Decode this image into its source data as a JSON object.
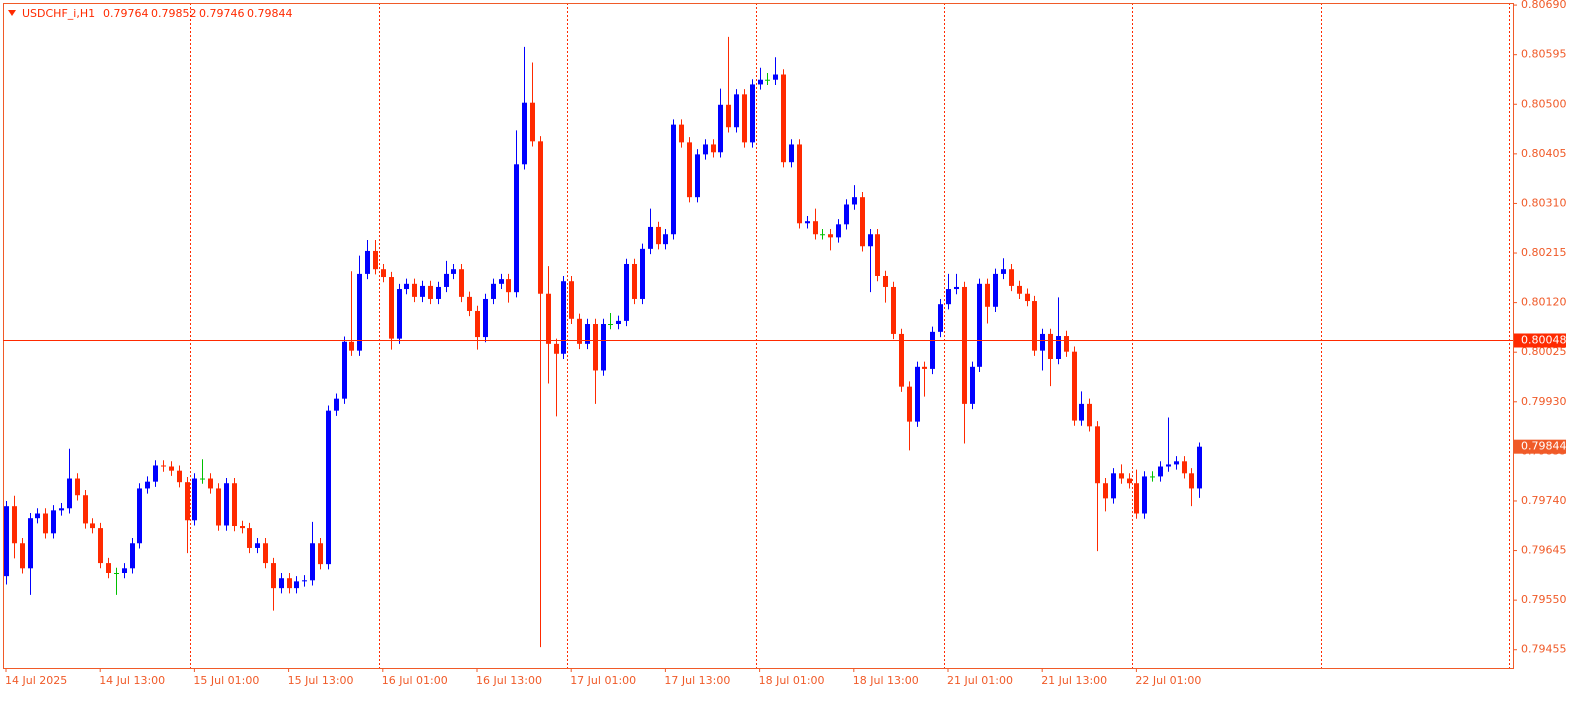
{
  "chart_data": {
    "type": "candlestick",
    "symbol": "USDCHF_i,H1",
    "up_color": "#0000ff",
    "down_color": "#ff2a00",
    "flat_color": "#00c000",
    "line_color": "#ff2a00",
    "axis_color": "#f05a28",
    "hline": 0.80048,
    "ylim": [
      0.7942,
      0.80694
    ],
    "yticks": [
      {
        "value": 0.8069,
        "label": "0.80690"
      },
      0.80595,
      {
        "value": 0.805,
        "label": "0.80500"
      },
      0.80405,
      {
        "value": 0.8031,
        "label": "0.80310"
      },
      0.80215,
      {
        "value": 0.8012,
        "label": "0.80120"
      },
      0.80025,
      {
        "value": 0.7993,
        "label": "0.79930"
      },
      0.79835,
      {
        "value": 0.7974,
        "label": "0.79740"
      },
      0.79645,
      {
        "value": 0.7955,
        "label": "0.79550"
      },
      0.79455
    ],
    "categories": [
      "14 Jul 2025",
      null,
      null,
      null,
      null,
      null,
      null,
      null,
      null,
      null,
      null,
      null,
      "14 Jul 13:00",
      null,
      null,
      null,
      null,
      null,
      null,
      null,
      null,
      null,
      null,
      null,
      "15 Jul 01:00",
      null,
      null,
      null,
      null,
      null,
      null,
      null,
      null,
      null,
      null,
      null,
      "15 Jul 13:00",
      null,
      null,
      null,
      null,
      null,
      null,
      null,
      null,
      null,
      null,
      null,
      "16 Jul 01:00",
      null,
      null,
      null,
      null,
      null,
      null,
      null,
      null,
      null,
      null,
      null,
      "16 Jul 13:00",
      null,
      null,
      null,
      null,
      null,
      null,
      null,
      null,
      null,
      null,
      null,
      "17 Jul 01:00",
      null,
      null,
      null,
      null,
      null,
      null,
      null,
      null,
      null,
      null,
      null,
      "17 Jul 13:00",
      null,
      null,
      null,
      null,
      null,
      null,
      null,
      null,
      null,
      null,
      null,
      "18 Jul 01:00",
      null,
      null,
      null,
      null,
      null,
      null,
      null,
      null,
      null,
      null,
      null,
      "18 Jul 13:00",
      null,
      null,
      null,
      null,
      null,
      null,
      null,
      null,
      null,
      null,
      null,
      "21 Jul 01:00",
      null,
      null,
      null,
      null,
      null,
      null,
      null,
      null,
      null,
      null,
      null,
      "21 Jul 13:00",
      null,
      null,
      null,
      null,
      null,
      null,
      null,
      null,
      null,
      null,
      null,
      "22 Jul 01:00",
      null,
      null,
      null,
      null,
      null,
      null,
      null,
      null
    ],
    "open": [
      0.79596,
      0.7973,
      0.79659,
      0.79611,
      0.79707,
      0.79716,
      0.79678,
      0.79722,
      0.79726,
      0.79783,
      0.79751,
      0.79697,
      0.79688,
      0.79621,
      0.79602,
      0.79602,
      0.79611,
      0.79659,
      0.79764,
      0.79777,
      0.79808,
      0.79806,
      0.79798,
      0.79776,
      0.79703,
      0.79783,
      0.79783,
      0.79764,
      0.79693,
      0.79774,
      0.79692,
      0.79688,
      0.7965,
      0.79659,
      0.79621,
      0.79573,
      0.79592,
      0.79573,
      0.79586,
      0.79588,
      0.79659,
      0.79619,
      0.79913,
      0.79936,
      0.80045,
      0.80028,
      0.80175,
      0.80219,
      0.80184,
      0.80169,
      0.80051,
      0.80146,
      0.80156,
      0.80131,
      0.80152,
      0.80127,
      0.8015,
      0.80175,
      0.80184,
      0.80131,
      0.80104,
      0.80054,
      0.80127,
      0.80156,
      0.80165,
      0.8014,
      0.80385,
      0.80503,
      0.80429,
      0.80137,
      0.80041,
      0.80022,
      0.80161,
      0.80089,
      0.80041,
      0.80079,
      0.7999,
      0.80079,
      0.80079,
      0.80085,
      0.80194,
      0.80127,
      0.80223,
      0.80265,
      0.80232,
      0.80251,
      0.80461,
      0.80427,
      0.80322,
      0.80404,
      0.80423,
      0.80408,
      0.80499,
      0.80456,
      0.80519,
      0.80427,
      0.80538,
      0.80547,
      0.80547,
      0.80557,
      0.80389,
      0.80423,
      0.80272,
      0.80276,
      0.80251,
      0.80251,
      0.80245,
      0.8027,
      0.80308,
      0.80322,
      0.80228,
      0.80251,
      0.80171,
      0.8015,
      0.8006,
      0.79959,
      0.79892,
      0.79997,
      0.79993,
      0.80064,
      0.80117,
      0.80146,
      0.8015,
      0.79926,
      0.79997,
      0.80156,
      0.80112,
      0.80175,
      0.80184,
      0.80152,
      0.80137,
      0.80123,
      0.80028,
      0.8006,
      0.80012,
      0.80056,
      0.80026,
      0.79894,
      0.79926,
      0.79883,
      0.79774,
      0.79745,
      0.79793,
      0.79783,
      0.79774,
      0.79716,
      0.79787,
      0.79787,
      0.79806,
      0.7981,
      0.79816,
      0.79793,
      0.79764
    ],
    "high": [
      0.7974,
      0.7975,
      0.79669,
      0.79717,
      0.79726,
      0.79726,
      0.79732,
      0.79736,
      0.7984,
      0.79793,
      0.79761,
      0.79707,
      0.79698,
      0.79631,
      0.79612,
      0.79621,
      0.79669,
      0.79774,
      0.79787,
      0.79818,
      0.79818,
      0.79816,
      0.79808,
      0.79786,
      0.79793,
      0.7982,
      0.79793,
      0.79774,
      0.79784,
      0.79784,
      0.79702,
      0.79698,
      0.79669,
      0.79669,
      0.79631,
      0.79602,
      0.79602,
      0.79596,
      0.79598,
      0.797,
      0.79669,
      0.79923,
      0.79946,
      0.80055,
      0.8018,
      0.8021,
      0.8024,
      0.8024,
      0.80194,
      0.80179,
      0.80156,
      0.80166,
      0.80166,
      0.80162,
      0.80162,
      0.8016,
      0.802,
      0.80194,
      0.80194,
      0.80141,
      0.80114,
      0.80137,
      0.80166,
      0.80175,
      0.80175,
      0.8045,
      0.8061,
      0.8058,
      0.80439,
      0.8019,
      0.80051,
      0.80171,
      0.80171,
      0.80099,
      0.80089,
      0.80089,
      0.80089,
      0.801,
      0.80095,
      0.80204,
      0.80204,
      0.80233,
      0.803,
      0.80275,
      0.80261,
      0.80471,
      0.80471,
      0.80437,
      0.80414,
      0.80433,
      0.80433,
      0.8053,
      0.80629,
      0.80529,
      0.80529,
      0.80548,
      0.8057,
      0.8056,
      0.8059,
      0.80567,
      0.80433,
      0.80433,
      0.80286,
      0.803,
      0.80261,
      0.80261,
      0.8028,
      0.80318,
      0.80345,
      0.80332,
      0.80261,
      0.80261,
      0.80181,
      0.8016,
      0.8007,
      0.79969,
      0.80007,
      0.80007,
      0.80074,
      0.80127,
      0.80175,
      0.80175,
      0.8016,
      0.80007,
      0.80166,
      0.80166,
      0.80185,
      0.80205,
      0.80194,
      0.80162,
      0.80147,
      0.80133,
      0.8007,
      0.8007,
      0.8013,
      0.80066,
      0.80036,
      0.7995,
      0.79936,
      0.79893,
      0.79784,
      0.79803,
      0.7981,
      0.79793,
      0.798,
      0.79797,
      0.79797,
      0.79816,
      0.799,
      0.79826,
      0.79826,
      0.79803,
      0.79852
    ],
    "low": [
      0.7958,
      0.7963,
      0.79601,
      0.7956,
      0.79697,
      0.79668,
      0.79668,
      0.79712,
      0.79716,
      0.79741,
      0.79687,
      0.79678,
      0.79611,
      0.79592,
      0.7956,
      0.79592,
      0.79601,
      0.79649,
      0.79754,
      0.79767,
      0.79796,
      0.79788,
      0.79766,
      0.7964,
      0.79693,
      0.79773,
      0.79754,
      0.79683,
      0.79683,
      0.79682,
      0.79678,
      0.7964,
      0.7964,
      0.79611,
      0.7953,
      0.79563,
      0.79563,
      0.79563,
      0.79576,
      0.79578,
      0.79609,
      0.79609,
      0.79903,
      0.79926,
      0.80018,
      0.80018,
      0.80165,
      0.80174,
      0.80159,
      0.8003,
      0.80041,
      0.80136,
      0.80121,
      0.80121,
      0.80117,
      0.80117,
      0.8014,
      0.80165,
      0.80121,
      0.80094,
      0.8003,
      0.80044,
      0.80117,
      0.80146,
      0.8012,
      0.8013,
      0.80375,
      0.80419,
      0.7946,
      0.79965,
      0.79902,
      0.80012,
      0.80079,
      0.80031,
      0.80031,
      0.79926,
      0.7998,
      0.80069,
      0.80069,
      0.80075,
      0.80117,
      0.80117,
      0.80213,
      0.80222,
      0.80222,
      0.80241,
      0.80417,
      0.80312,
      0.80312,
      0.80394,
      0.80398,
      0.80398,
      0.80446,
      0.80446,
      0.80417,
      0.80417,
      0.80528,
      0.80537,
      0.80537,
      0.80379,
      0.80379,
      0.80262,
      0.80262,
      0.80241,
      0.80241,
      0.8022,
      0.80235,
      0.8026,
      0.80298,
      0.80218,
      0.8014,
      0.80161,
      0.8012,
      0.8005,
      0.79949,
      0.79837,
      0.79882,
      0.7994,
      0.79983,
      0.80054,
      0.80107,
      0.80136,
      0.7985,
      0.79916,
      0.79987,
      0.8008,
      0.80102,
      0.80165,
      0.80142,
      0.80127,
      0.80113,
      0.80018,
      0.7999,
      0.7996,
      0.80002,
      0.80016,
      0.79884,
      0.79884,
      0.79873,
      0.79644,
      0.7972,
      0.79735,
      0.79773,
      0.79764,
      0.79706,
      0.79706,
      0.79777,
      0.79777,
      0.79796,
      0.798,
      0.79783,
      0.7973,
      0.79746
    ],
    "close": [
      0.7973,
      0.79659,
      0.79611,
      0.79707,
      0.79716,
      0.79678,
      0.79722,
      0.79726,
      0.79783,
      0.79751,
      0.79697,
      0.79688,
      0.79621,
      0.79602,
      0.79602,
      0.79611,
      0.79659,
      0.79764,
      0.79777,
      0.79808,
      0.79806,
      0.79798,
      0.79776,
      0.79703,
      0.79783,
      0.79783,
      0.79764,
      0.79693,
      0.79774,
      0.79692,
      0.79688,
      0.7965,
      0.79659,
      0.79621,
      0.79573,
      0.79592,
      0.79573,
      0.79586,
      0.79588,
      0.79659,
      0.79619,
      0.79913,
      0.79936,
      0.80045,
      0.80028,
      0.80175,
      0.80219,
      0.80184,
      0.80169,
      0.80051,
      0.80146,
      0.80156,
      0.80131,
      0.80152,
      0.80127,
      0.8015,
      0.80175,
      0.80184,
      0.80131,
      0.80104,
      0.80054,
      0.80127,
      0.80156,
      0.80165,
      0.8014,
      0.80385,
      0.80503,
      0.80429,
      0.80137,
      0.80041,
      0.80022,
      0.80161,
      0.80089,
      0.80041,
      0.80079,
      0.7999,
      0.80079,
      0.80079,
      0.80085,
      0.80194,
      0.80127,
      0.80223,
      0.80265,
      0.80232,
      0.80251,
      0.80461,
      0.80427,
      0.80322,
      0.80404,
      0.80423,
      0.80408,
      0.80499,
      0.80456,
      0.80519,
      0.80427,
      0.80538,
      0.80547,
      0.80547,
      0.80557,
      0.80389,
      0.80423,
      0.80272,
      0.80276,
      0.80251,
      0.80251,
      0.80245,
      0.8027,
      0.80308,
      0.80322,
      0.80228,
      0.80251,
      0.80171,
      0.8015,
      0.8006,
      0.79959,
      0.79892,
      0.79997,
      0.79993,
      0.80064,
      0.80117,
      0.80146,
      0.8015,
      0.79926,
      0.79997,
      0.80156,
      0.80112,
      0.80175,
      0.80184,
      0.80152,
      0.80137,
      0.80123,
      0.80028,
      0.8006,
      0.80012,
      0.80056,
      0.80026,
      0.79894,
      0.79926,
      0.79883,
      0.79774,
      0.79745,
      0.79793,
      0.79783,
      0.79774,
      0.79716,
      0.79787,
      0.79787,
      0.79806,
      0.7981,
      0.79816,
      0.79793,
      0.79764,
      0.79844
    ]
  }
}
